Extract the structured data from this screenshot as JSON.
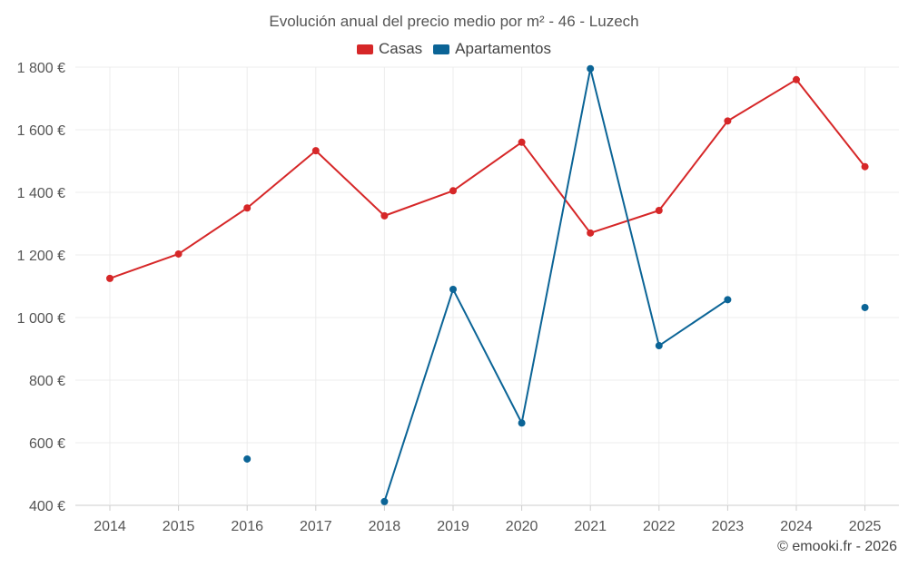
{
  "chart_data": {
    "type": "line",
    "title": "Evolución anual del precio medio por m² - 46 - Luzech",
    "categories": [
      "2014",
      "2015",
      "2016",
      "2017",
      "2018",
      "2019",
      "2020",
      "2021",
      "2022",
      "2023",
      "2024",
      "2025"
    ],
    "series": [
      {
        "name": "Casas",
        "color": "#d62728",
        "values": [
          1125,
          1203,
          1350,
          1533,
          1325,
          1405,
          1560,
          1270,
          1342,
          1628,
          1760,
          1482
        ]
      },
      {
        "name": "Apartamentos",
        "color": "#0b6496",
        "values": [
          null,
          null,
          548,
          null,
          412,
          1090,
          663,
          1795,
          910,
          1057,
          null,
          1032
        ]
      }
    ],
    "ylim": [
      400,
      1800
    ],
    "yticks": [
      400,
      600,
      800,
      1000,
      1200,
      1400,
      1600,
      1800
    ],
    "yunit": " €",
    "xlabel": "",
    "ylabel": "",
    "grid": true,
    "legend_position": "top-center"
  },
  "credit": "© emooki.fr - 2026"
}
